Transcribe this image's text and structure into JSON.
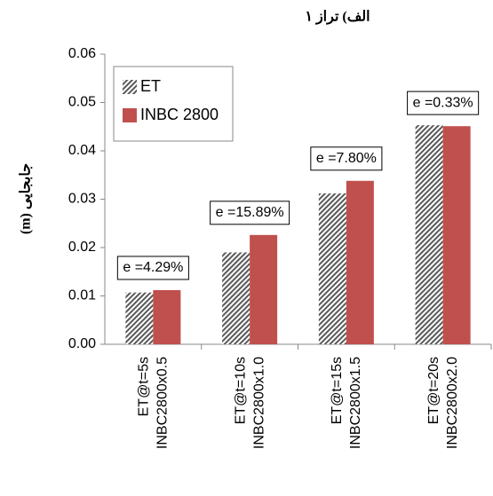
{
  "chart_data": {
    "type": "bar",
    "title": "الف) تراز ۱",
    "y_label": "جابجایی (m)",
    "categories": [
      [
        "ET@t=5s",
        "INBC2800x0.5"
      ],
      [
        "ET@t=10s",
        "INBC2800x1.0"
      ],
      [
        "ET@t=15s",
        "INBC2800x1.5"
      ],
      [
        "ET@t=20s",
        "INBC2800x2.0"
      ]
    ],
    "series": [
      {
        "name": "ET",
        "color": "#595959",
        "pattern": "hatch",
        "values": [
          0.0107,
          0.019,
          0.0312,
          0.0453
        ]
      },
      {
        "name": "INBC 2800",
        "color": "#c0504d",
        "values": [
          0.0112,
          0.0226,
          0.0338,
          0.0451
        ]
      }
    ],
    "annotations": [
      "e =4.29%",
      "e =15.89%",
      "e =7.80%",
      "e =0.33%"
    ],
    "ylim": [
      0,
      0.06
    ],
    "yticks": [
      {
        "value": 0,
        "label": "0.00"
      },
      0.01,
      0.02,
      0.03,
      0.04,
      0.05,
      0.06
    ],
    "legend": "upper left"
  }
}
